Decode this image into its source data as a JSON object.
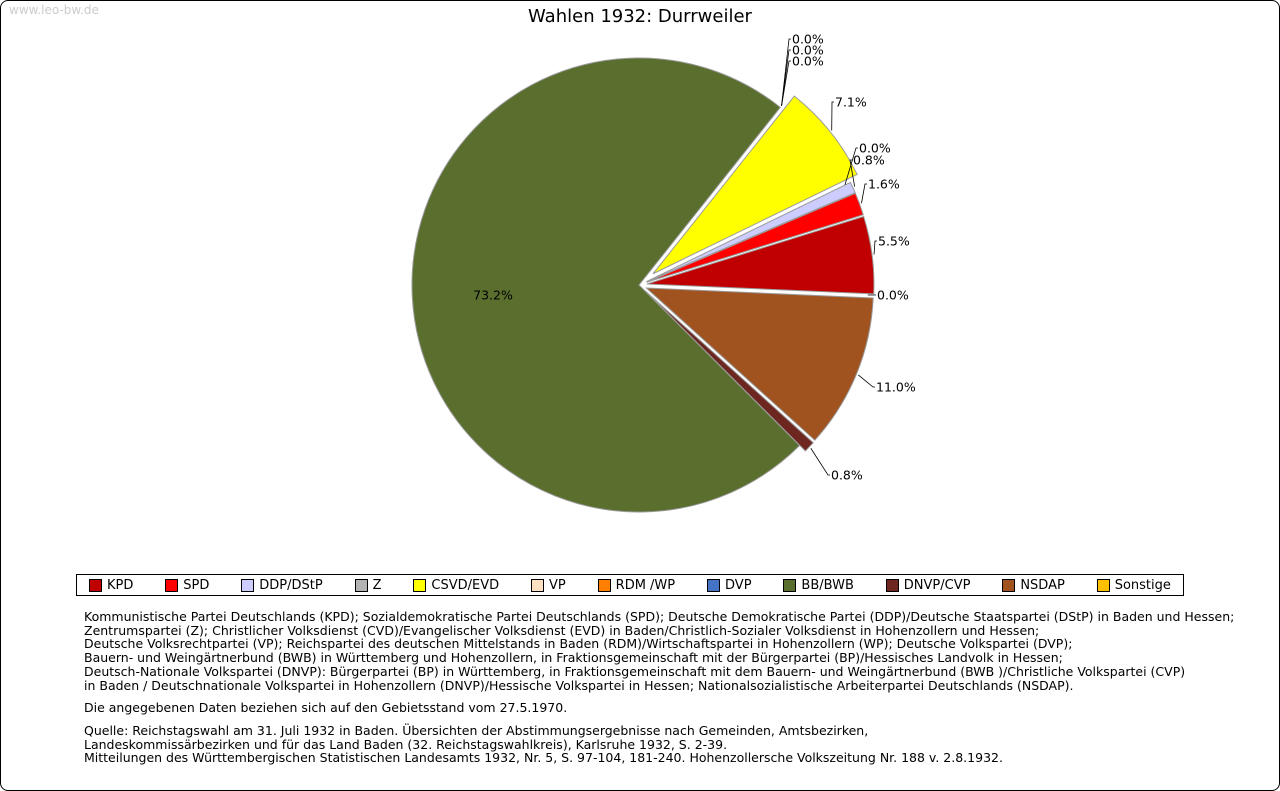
{
  "page": {
    "watermark": "www.leo-bw.de",
    "title": "Wahlen 1932: Durrweiler"
  },
  "chart_data": {
    "type": "pie",
    "title": "Wahlen 1932: Durrweiler",
    "value_unit": "%",
    "label_format": "percent_one_decimal",
    "legend_position": "bottom",
    "start_angle_deg_cw_from_top": 38.5,
    "slices": [
      {
        "party": "DVP",
        "value": 0.0,
        "color": "#4472c4",
        "explode": 0
      },
      {
        "party": "RDM /WP",
        "value": 0.0,
        "color": "#ff8000",
        "explode": 0
      },
      {
        "party": "VP",
        "value": 0.0,
        "color": "#ffe0c0",
        "explode": 0
      },
      {
        "party": "CSVD/EVD",
        "value": 7.1,
        "color": "#ffff00",
        "explode": 18
      },
      {
        "party": "Z",
        "value": 0.0,
        "color": "#b3b3b3",
        "explode": 0
      },
      {
        "party": "DDP/DStP",
        "value": 0.8,
        "color": "#ccccff",
        "explode": 8
      },
      {
        "party": "SPD",
        "value": 1.6,
        "color": "#ff0000",
        "explode": 8
      },
      {
        "party": "KPD",
        "value": 5.5,
        "color": "#c00000",
        "explode": 8
      },
      {
        "party": "Sonstige",
        "value": 0.0,
        "color": "#ffc000",
        "explode": 0
      },
      {
        "party": "NSDAP",
        "value": 11.0,
        "color": "#a0521f",
        "explode": 8
      },
      {
        "party": "DNVP/CVP",
        "value": 0.8,
        "color": "#6e2620",
        "explode": 8
      },
      {
        "party": "BB/BWB",
        "value": 73.2,
        "color": "#5a6e2e",
        "explode": 0
      }
    ]
  },
  "legend": {
    "items": [
      {
        "label": "KPD",
        "color": "#c00000"
      },
      {
        "label": "SPD",
        "color": "#ff0000"
      },
      {
        "label": "DDP/DStP",
        "color": "#ccccff"
      },
      {
        "label": "Z",
        "color": "#b3b3b3"
      },
      {
        "label": "CSVD/EVD",
        "color": "#ffff00"
      },
      {
        "label": "VP",
        "color": "#ffe0c0"
      },
      {
        "label": "RDM /WP",
        "color": "#ff8000"
      },
      {
        "label": "DVP",
        "color": "#4472c4"
      },
      {
        "label": "BB/BWB",
        "color": "#5a6e2e"
      },
      {
        "label": "DNVP/CVP",
        "color": "#6e2620"
      },
      {
        "label": "NSDAP",
        "color": "#a0521f"
      },
      {
        "label": "Sonstige",
        "color": "#ffc000"
      }
    ]
  },
  "notes": {
    "definitions": [
      "Kommunistische Partei Deutschlands (KPD); Sozialdemokratische Partei Deutschlands (SPD); Deutsche Demokratische Partei (DDP)/Deutsche Staatspartei (DStP) in Baden und Hessen;",
      "Zentrumspartei (Z); Christlicher Volksdienst (CVD)/Evangelischer Volksdienst (EVD) in Baden/Christlich-Sozialer Volksdienst in Hohenzollern und Hessen;",
      "Deutsche Volksrechtpartei (VP); Reichspartei des deutschen Mittelstands in Baden (RDM)/Wirtschaftspartei in Hohenzollern (WP); Deutsche Volkspartei (DVP);",
      "Bauern- und Weingärtnerbund (BWB) in Württemberg und Hohenzollern, in Fraktionsgemeinschaft mit der Bürgerpartei (BP)/Hessisches Landvolk in Hessen;",
      "Deutsch-Nationale Volkspartei (DNVP): Bürgerpartei (BP) in Württemberg, in Fraktionsgemeinschaft mit dem Bauern- und Weingärtnerbund (BWB )/Christliche Volkspartei (CVP)",
      "in Baden / Deutschnationale Volkspartei in Hohenzollern (DNVP)/Hessische Volkspartei in Hessen; Nationalsozialistische Arbeiterpartei Deutschlands (NSDAP)."
    ],
    "territorial": "Die angegebenen Daten beziehen sich auf den Gebietsstand vom 27.5.1970.",
    "source": [
      "Quelle: Reichstagswahl am 31. Juli 1932 in Baden. Übersichten der Abstimmungsergebnisse nach Gemeinden, Amtsbezirken,",
      "Landeskommissärbezirken und für das Land Baden (32. Reichstagswahlkreis), Karlsruhe 1932, S. 2-39.",
      "Mitteilungen des Württembergischen Statistischen Landesamts 1932, Nr. 5, S. 97-104, 181-240. Hohenzollersche Volkszeitung Nr. 188 v. 2.8.1932."
    ]
  }
}
